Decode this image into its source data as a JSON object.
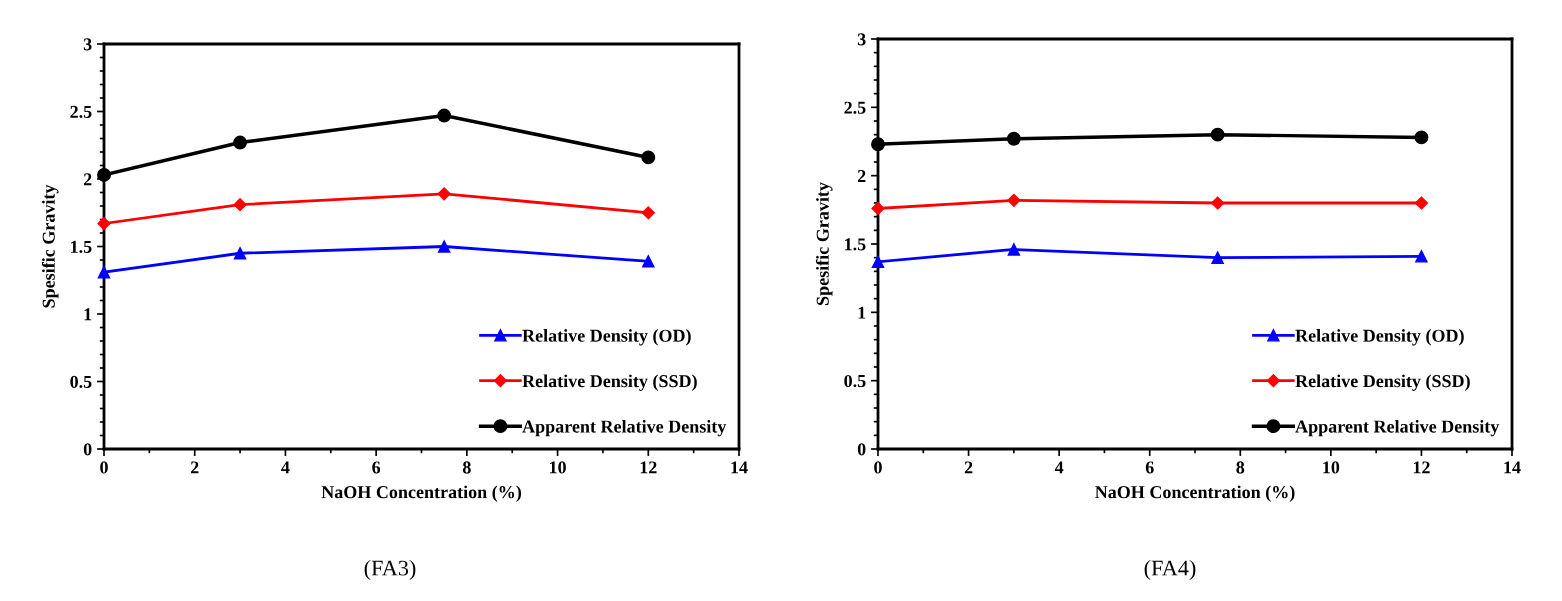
{
  "chart_data": [
    {
      "type": "line",
      "title": "(FA3)",
      "xlabel": "NaOH Concentration (%)",
      "ylabel": "Spesific Gravity",
      "x": [
        0,
        3,
        7.5,
        12
      ],
      "xlim": [
        0,
        14
      ],
      "xticks": [
        0,
        2,
        4,
        6,
        8,
        10,
        12,
        14
      ],
      "ylim": [
        0,
        3
      ],
      "yticks": [
        0,
        0.5,
        1,
        1.5,
        2,
        2.5,
        3
      ],
      "grid": false,
      "legend": "bottom right",
      "series": [
        {
          "name": "Relative Density (OD)",
          "color": "#0000ff",
          "marker": "triangle",
          "values": [
            1.31,
            1.45,
            1.5,
            1.39
          ]
        },
        {
          "name": "Relative Density (SSD)",
          "color": "#ff0000",
          "marker": "diamond",
          "values": [
            1.67,
            1.81,
            1.89,
            1.75
          ]
        },
        {
          "name": "Apparent Relative Density",
          "color": "#000000",
          "marker": "circle",
          "values": [
            2.03,
            2.27,
            2.47,
            2.16
          ]
        }
      ]
    },
    {
      "type": "line",
      "title": "(FA4)",
      "xlabel": "NaOH Concentration (%)",
      "ylabel": "Spesific Gravity",
      "x": [
        0,
        3,
        7.5,
        12
      ],
      "xlim": [
        0,
        14
      ],
      "xticks": [
        0,
        2,
        4,
        6,
        8,
        10,
        12,
        14
      ],
      "ylim": [
        0,
        3
      ],
      "yticks": [
        0,
        0.5,
        1,
        1.5,
        2,
        2.5,
        3
      ],
      "grid": false,
      "legend": "bottom right",
      "series": [
        {
          "name": "Relative Density (OD)",
          "color": "#0000ff",
          "marker": "triangle",
          "values": [
            1.37,
            1.46,
            1.4,
            1.41
          ]
        },
        {
          "name": "Relative Density (SSD)",
          "color": "#ff0000",
          "marker": "diamond",
          "values": [
            1.76,
            1.82,
            1.8,
            1.8
          ]
        },
        {
          "name": "Apparent Relative Density",
          "color": "#000000",
          "marker": "circle",
          "values": [
            2.23,
            2.27,
            2.3,
            2.28
          ]
        }
      ]
    }
  ]
}
